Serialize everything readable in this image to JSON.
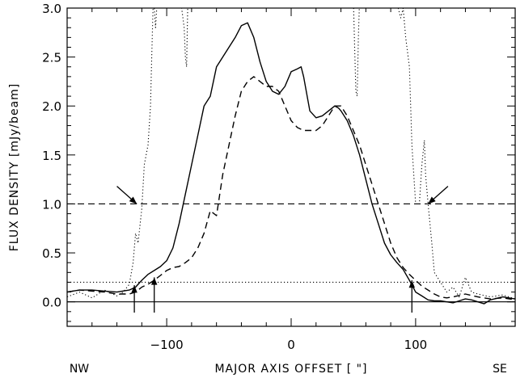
{
  "chart_data": {
    "type": "line",
    "title": "",
    "xlabel": "MAJOR AXIS OFFSET [ \"]",
    "ylabel": "FLUX DENSITY [mJy/beam]",
    "xlim": [
      -180,
      180
    ],
    "ylim": [
      -0.25,
      3.0
    ],
    "x_ticks": [
      -100,
      0,
      100
    ],
    "x_tick_labels": [
      "−100",
      "0",
      "100"
    ],
    "y_ticks": [
      0.0,
      0.5,
      1.0,
      1.5,
      2.0,
      2.5,
      3.0
    ],
    "y_tick_labels": [
      "0.0",
      "0.5",
      "1.0",
      "1.5",
      "2.0",
      "2.5",
      "3.0"
    ],
    "direction_labels": {
      "left": "NW",
      "right": "SE"
    },
    "grid": false,
    "reference_lines": [
      {
        "style": "solid",
        "y": 0.0
      },
      {
        "style": "dashed",
        "y": 1.0
      },
      {
        "style": "dotted",
        "y": 0.2
      }
    ],
    "series": [
      {
        "style": "solid",
        "x": [
          -180,
          -170,
          -160,
          -150,
          -140,
          -130,
          -125,
          -120,
          -115,
          -110,
          -105,
          -100,
          -95,
          -90,
          -85,
          -80,
          -75,
          -70,
          -65,
          -60,
          -55,
          -50,
          -45,
          -40,
          -35,
          -30,
          -25,
          -20,
          -15,
          -10,
          -5,
          0,
          5,
          8,
          10,
          15,
          20,
          25,
          30,
          35,
          38,
          40,
          45,
          50,
          55,
          60,
          65,
          70,
          75,
          80,
          85,
          90,
          95,
          100,
          105,
          110,
          115,
          120,
          125,
          130,
          135,
          140,
          145,
          150,
          155,
          160,
          170,
          180
        ],
        "values": [
          0.1,
          0.12,
          0.12,
          0.11,
          0.1,
          0.12,
          0.15,
          0.22,
          0.28,
          0.32,
          0.36,
          0.42,
          0.55,
          0.8,
          1.1,
          1.4,
          1.7,
          2.0,
          2.1,
          2.4,
          2.5,
          2.6,
          2.7,
          2.82,
          2.85,
          2.7,
          2.45,
          2.25,
          2.15,
          2.12,
          2.2,
          2.35,
          2.38,
          2.4,
          2.3,
          1.95,
          1.88,
          1.9,
          1.95,
          2.0,
          1.98,
          1.95,
          1.85,
          1.7,
          1.5,
          1.25,
          1.0,
          0.8,
          0.6,
          0.48,
          0.4,
          0.33,
          0.22,
          0.1,
          0.06,
          0.02,
          0.01,
          0.01,
          0.0,
          -0.01,
          0.01,
          0.03,
          0.02,
          0.0,
          -0.02,
          0.02,
          0.05,
          0.03
        ]
      },
      {
        "style": "dashed",
        "x": [
          -180,
          -170,
          -160,
          -150,
          -140,
          -130,
          -125,
          -120,
          -115,
          -110,
          -105,
          -100,
          -95,
          -90,
          -85,
          -80,
          -75,
          -70,
          -65,
          -60,
          -55,
          -50,
          -45,
          -40,
          -35,
          -30,
          -25,
          -20,
          -15,
          -10,
          -5,
          0,
          5,
          10,
          15,
          20,
          25,
          30,
          35,
          40,
          45,
          50,
          55,
          60,
          65,
          70,
          75,
          80,
          85,
          90,
          95,
          100,
          105,
          110,
          115,
          120,
          125,
          130,
          140,
          150,
          160,
          170,
          180
        ],
        "values": [
          0.1,
          0.12,
          0.11,
          0.1,
          0.08,
          0.08,
          0.1,
          0.15,
          0.18,
          0.22,
          0.27,
          0.32,
          0.35,
          0.36,
          0.4,
          0.45,
          0.55,
          0.7,
          0.93,
          0.88,
          1.3,
          1.6,
          1.9,
          2.15,
          2.25,
          2.3,
          2.25,
          2.2,
          2.2,
          2.15,
          2.0,
          1.85,
          1.78,
          1.75,
          1.75,
          1.75,
          1.8,
          1.9,
          2.0,
          2.0,
          1.9,
          1.75,
          1.6,
          1.4,
          1.2,
          1.0,
          0.8,
          0.6,
          0.45,
          0.35,
          0.28,
          0.22,
          0.16,
          0.12,
          0.08,
          0.05,
          0.04,
          0.05,
          0.08,
          0.05,
          0.03,
          0.04,
          0.02
        ]
      },
      {
        "style": "dotted",
        "x": [
          -180,
          -170,
          -160,
          -150,
          -140,
          -135,
          -130,
          -127,
          -125,
          -123,
          -120,
          -118,
          -115,
          -113,
          -112,
          -111,
          -110,
          -109,
          -108,
          -107,
          -105,
          -104,
          -103,
          -102,
          -101,
          -100,
          -99,
          -98
        ],
        "values": [
          0.05,
          0.1,
          0.04,
          0.12,
          0.06,
          0.1,
          0.18,
          0.4,
          0.7,
          0.6,
          0.95,
          1.4,
          1.6,
          2.0,
          2.5,
          3.0,
          3.0,
          2.8,
          3.0,
          3.1,
          null,
          null,
          null,
          null,
          null,
          null,
          null,
          null
        ]
      },
      {
        "style": "dotted",
        "x": [
          -98,
          -95,
          -92,
          -90,
          -88,
          -86,
          -85,
          -84,
          -83
        ],
        "values": [
          null,
          null,
          null,
          3.1,
          3.0,
          2.8,
          2.5,
          2.4,
          3.1
        ]
      },
      {
        "style": "dotted",
        "x": [
          50,
          51,
          52,
          53,
          54,
          55
        ],
        "values": [
          3.1,
          2.6,
          2.15,
          2.1,
          2.7,
          3.1
        ]
      },
      {
        "style": "dotted",
        "x": [
          86,
          87,
          88,
          89,
          90,
          92,
          95,
          97,
          100,
          103,
          105,
          107,
          108,
          110,
          113,
          115,
          120,
          125,
          130,
          135,
          140,
          145,
          150,
          160,
          170,
          180
        ],
        "values": [
          3.0,
          2.95,
          2.9,
          2.95,
          3.0,
          2.7,
          2.4,
          1.6,
          1.0,
          1.0,
          1.4,
          1.65,
          1.3,
          1.0,
          0.6,
          0.3,
          0.2,
          0.1,
          0.15,
          0.05,
          0.25,
          0.1,
          0.08,
          0.05,
          0.07,
          0.03
        ]
      }
    ],
    "annotations": [
      {
        "type": "arrow",
        "at": [
          -124,
          1.0
        ],
        "from": [
          -140,
          1.18
        ]
      },
      {
        "type": "arrow",
        "at": [
          110,
          1.0
        ],
        "from": [
          126,
          1.18
        ]
      },
      {
        "type": "arrow",
        "at": [
          -126,
          0.17
        ],
        "from": [
          -126,
          -0.11
        ]
      },
      {
        "type": "arrow",
        "at": [
          -110,
          0.25
        ],
        "from": [
          -110,
          -0.11
        ]
      },
      {
        "type": "arrow",
        "at": [
          97,
          0.22
        ],
        "from": [
          97,
          -0.11
        ]
      }
    ]
  }
}
